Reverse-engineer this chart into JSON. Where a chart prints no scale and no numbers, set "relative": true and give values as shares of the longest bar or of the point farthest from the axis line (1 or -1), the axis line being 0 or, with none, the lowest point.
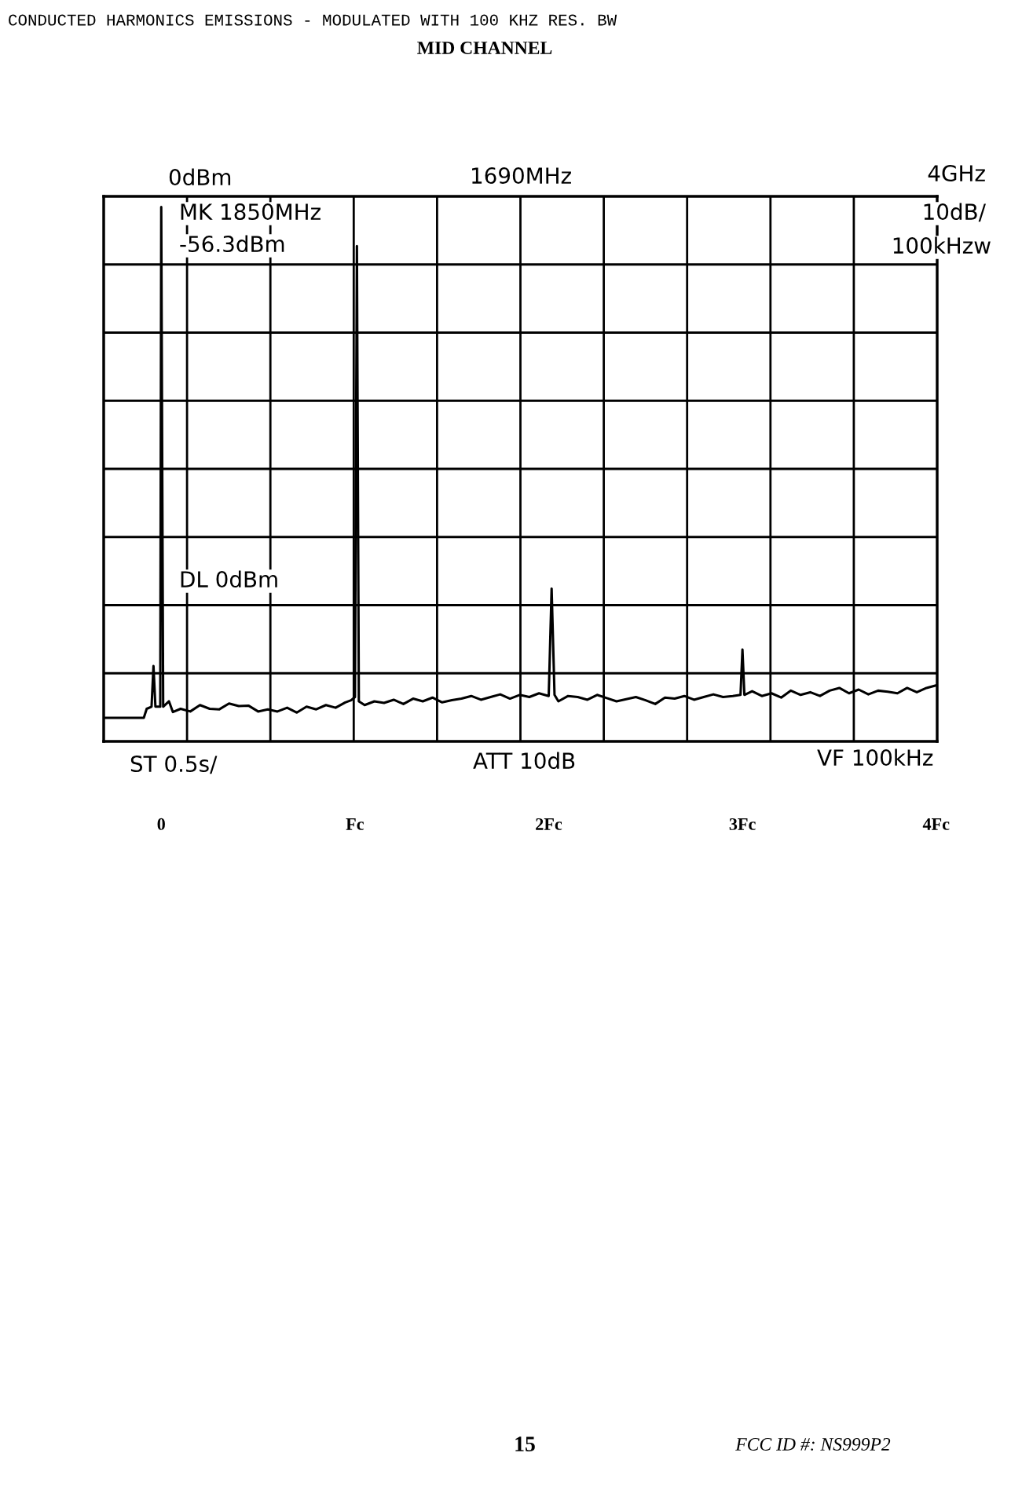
{
  "chart_data": {
    "type": "line",
    "title": "CONDUCTED HARMONICS EMISSIONS - MODULATED WITH 100 KHZ RES. BW",
    "subtitle": "MID CHANNEL",
    "relative": true,
    "grid": true,
    "xlim": [
      -0.297,
      4.005
    ],
    "xticks": [
      0,
      {
        "value": 1,
        "label": "Fc"
      },
      {
        "value": 2,
        "label": "2Fc"
      },
      {
        "value": 3,
        "label": "3Fc"
      },
      {
        "value": 4,
        "label": "4Fc"
      }
    ],
    "series": [
      {
        "color": "#000000",
        "x": [
          -0.29,
          -0.09,
          -0.075,
          -0.05,
          -0.04,
          -0.03,
          -0.005,
          0,
          0.01,
          0.04,
          0.06,
          0.1,
          0.15,
          0.2,
          0.25,
          0.3,
          0.35,
          0.4,
          0.45,
          0.5,
          0.55,
          0.6,
          0.65,
          0.7,
          0.75,
          0.8,
          0.85,
          0.9,
          0.95,
          0.98,
          1.0,
          1.01,
          1.02,
          1.05,
          1.1,
          1.15,
          1.2,
          1.25,
          1.3,
          1.35,
          1.4,
          1.45,
          1.5,
          1.55,
          1.6,
          1.65,
          1.7,
          1.75,
          1.8,
          1.85,
          1.9,
          1.95,
          2.0,
          2.015,
          2.03,
          2.05,
          2.1,
          2.15,
          2.2,
          2.25,
          2.3,
          2.35,
          2.4,
          2.45,
          2.5,
          2.55,
          2.6,
          2.65,
          2.7,
          2.75,
          2.8,
          2.85,
          2.9,
          2.95,
          2.99,
          3.0,
          3.01,
          3.05,
          3.1,
          3.15,
          3.2,
          3.25,
          3.3,
          3.35,
          3.4,
          3.45,
          3.5,
          3.55,
          3.6,
          3.65,
          3.7,
          3.75,
          3.8,
          3.85,
          3.9,
          3.95,
          4.0
        ],
        "values": [
          0.044,
          0.044,
          0.061,
          0.065,
          0.141,
          0.065,
          0.065,
          1,
          0.065,
          0.075,
          0.055,
          0.061,
          0.056,
          0.068,
          0.061,
          0.06,
          0.071,
          0.066,
          0.067,
          0.056,
          0.06,
          0.056,
          0.063,
          0.054,
          0.065,
          0.06,
          0.068,
          0.063,
          0.073,
          0.077,
          0.083,
          0.927,
          0.075,
          0.068,
          0.075,
          0.072,
          0.078,
          0.07,
          0.08,
          0.075,
          0.082,
          0.073,
          0.077,
          0.08,
          0.085,
          0.078,
          0.083,
          0.088,
          0.08,
          0.087,
          0.083,
          0.09,
          0.085,
          0.286,
          0.087,
          0.075,
          0.085,
          0.083,
          0.078,
          0.087,
          0.081,
          0.075,
          0.079,
          0.083,
          0.077,
          0.07,
          0.082,
          0.08,
          0.085,
          0.078,
          0.083,
          0.088,
          0.083,
          0.085,
          0.087,
          0.172,
          0.087,
          0.094,
          0.085,
          0.09,
          0.082,
          0.095,
          0.087,
          0.092,
          0.085,
          0.095,
          0.1,
          0.09,
          0.097,
          0.088,
          0.095,
          0.093,
          0.09,
          0.1,
          0.092,
          0.1,
          0.105
        ]
      }
    ],
    "annotations": [
      "0dBm",
      "1690MHz",
      "4GHz",
      "MK 1850MHz",
      "-56.3dBm",
      "10dB/",
      "100kHzw",
      "DL 0dBm",
      "ST 0.5s/",
      "ATT 10dB",
      "VF 100kHz",
      "15",
      "FCC ID #: NS999P2"
    ]
  }
}
